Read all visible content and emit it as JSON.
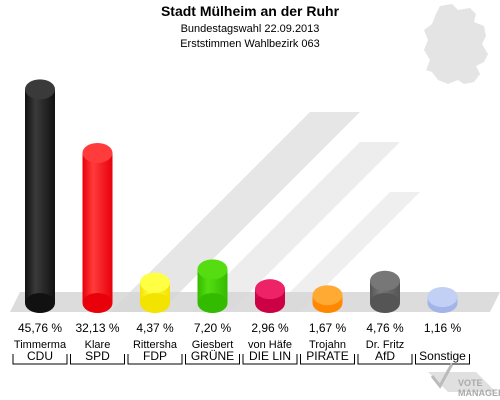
{
  "chart_data": {
    "type": "bar",
    "title": "Stadt Mülheim an der Ruhr",
    "subtitle_line1": "Bundestagswahl 22.09.2013",
    "subtitle_line2": "Erststimmen Wahlbezirk 063",
    "ylim": [
      0,
      48
    ],
    "grid": false,
    "categories": [
      {
        "candidate": "Timmerma",
        "party": "CDU",
        "value": 45.76,
        "label": "45,76 %",
        "color": "#111111",
        "color_light": "#3a3a3a"
      },
      {
        "candidate": "Klare",
        "party": "SPD",
        "value": 32.13,
        "label": "32,13 %",
        "color": "#e8000b",
        "color_light": "#ff3b3b"
      },
      {
        "candidate": "Rittersha",
        "party": "FDP",
        "value": 4.37,
        "label": "4,37 %",
        "color": "#f2e300",
        "color_light": "#ffff44"
      },
      {
        "candidate": "Giesbert",
        "party": "GRÜNE",
        "value": 7.2,
        "label": "7,20 %",
        "color": "#33bb00",
        "color_light": "#55dd11"
      },
      {
        "candidate": "von Häfe",
        "party": "DIE LIN",
        "value": 2.96,
        "label": "2,96 %",
        "color": "#cc0044",
        "color_light": "#ee2266"
      },
      {
        "candidate": "Trojahn",
        "party": "PIRATE",
        "value": 1.67,
        "label": "1,67 %",
        "color": "#ff8800",
        "color_light": "#ffaa33"
      },
      {
        "candidate": "Dr. Fritz",
        "party": "AfD",
        "value": 4.76,
        "label": "4,76 %",
        "color": "#555555",
        "color_light": "#777777"
      },
      {
        "candidate": "",
        "party": "Sonstige",
        "value": 1.16,
        "label": "1,16 %",
        "color": "#a3b5e8",
        "color_light": "#c2d0f5"
      }
    ]
  },
  "watermark": "VOTE MANAGER",
  "colors": {
    "background": "#ffffff",
    "floor": "#dcdcdc",
    "shadow": "#d6d6d6"
  }
}
